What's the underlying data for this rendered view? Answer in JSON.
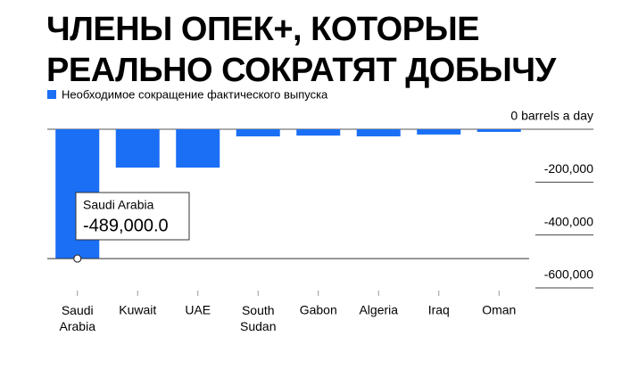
{
  "chart_data": {
    "type": "bar",
    "title": "ЧЛЕНЫ ОПЕК+, КОТОРЫЕ РЕАЛЬНО СОКРАТЯТ ДОБЫЧУ",
    "categories": [
      "Saudi Arabia",
      "Kuwait",
      "UAE",
      "South Sudan",
      "Gabon",
      "Algeria",
      "Iraq",
      "Oman"
    ],
    "series": [
      {
        "name": "Необходимое сокращение фактического выпуска",
        "color": "#1a6ff5",
        "values": [
          -489000,
          -145000,
          -145000,
          -27000,
          -24000,
          -27000,
          -20000,
          -10000
        ],
        "value_labels": [
          "-489,000.0",
          null,
          null,
          null,
          null,
          null,
          null,
          null
        ]
      }
    ],
    "ylim": [
      -600000,
      0
    ],
    "yticks": [
      {
        "value": 0,
        "label": "0 barrels a day"
      },
      {
        "value": -200000,
        "label": "-200,000"
      },
      {
        "value": -400000,
        "label": "-400,000"
      },
      {
        "value": -600000,
        "label": "-600,000"
      }
    ]
  }
}
